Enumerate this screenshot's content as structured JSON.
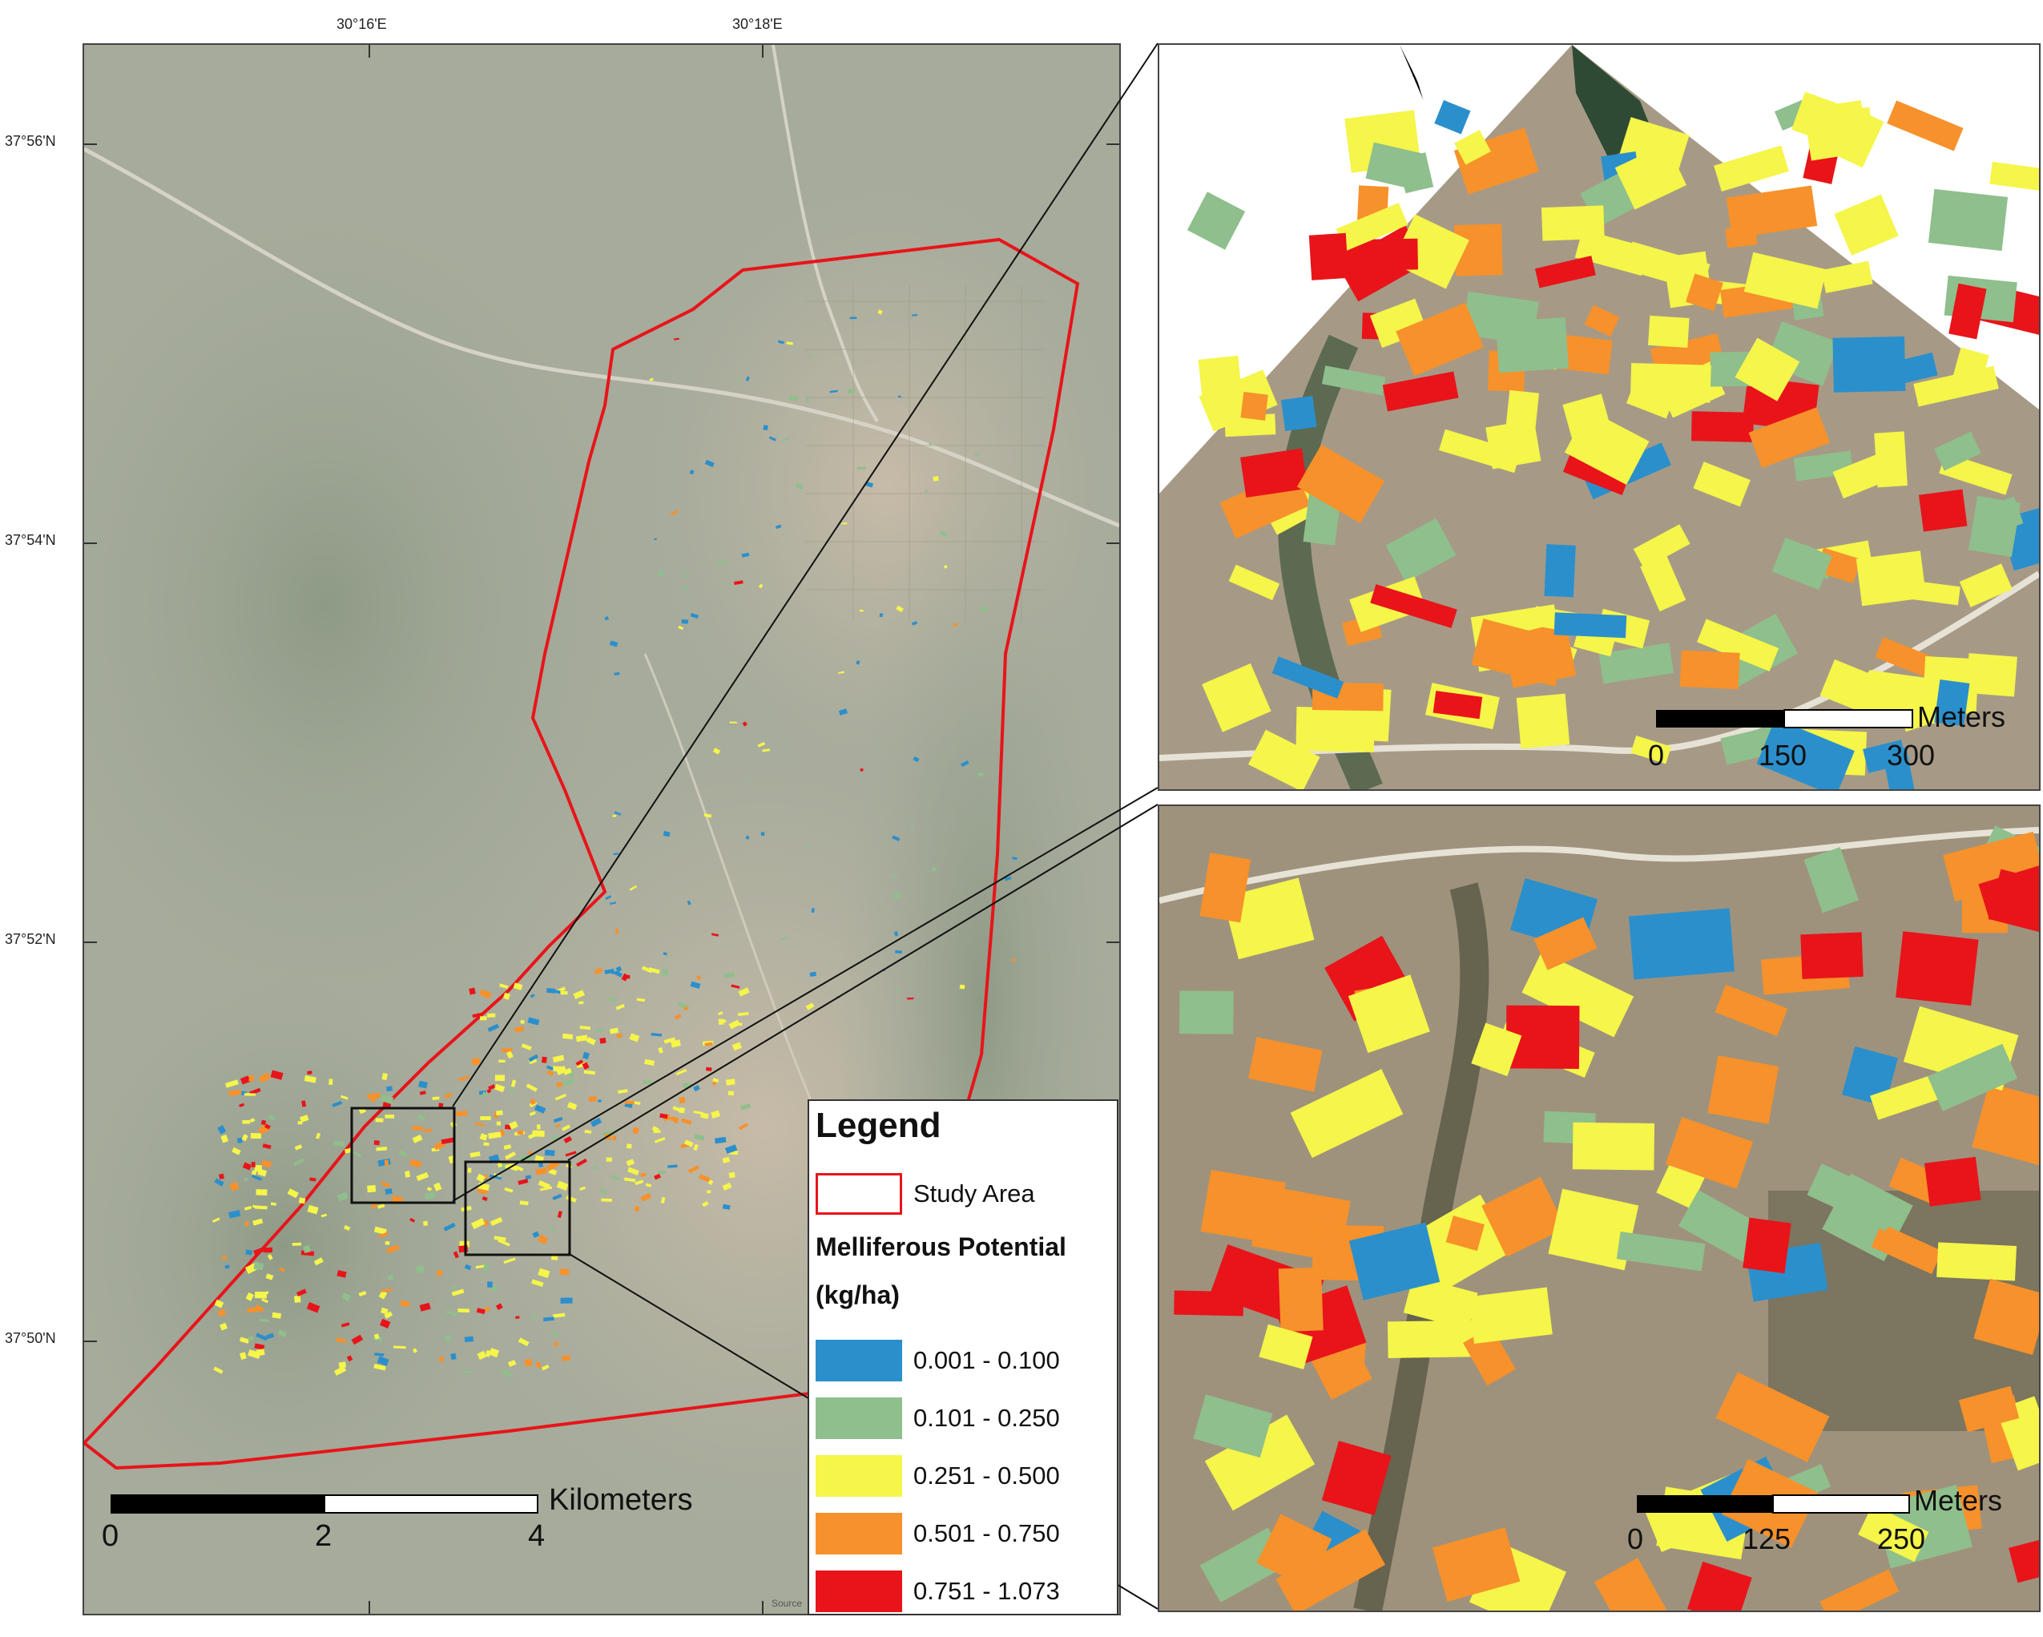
{
  "main_map": {
    "lon_ticks": [
      "30°16'E",
      "30°18'E"
    ],
    "lat_ticks": [
      "37°56'N",
      "37°54'N",
      "37°52'N",
      "37°50'N"
    ],
    "scale_bar": {
      "unit": "Kilometers",
      "labels": [
        "0",
        "2",
        "4"
      ]
    },
    "source_label": "Source"
  },
  "legend": {
    "title": "Legend",
    "study_area": "Study Area",
    "subtitle_line1": "Melliferous Potential",
    "subtitle_line2": "(kg/ha)",
    "classes": [
      {
        "label": "0.001 - 0.100",
        "color": "#2b8fcc"
      },
      {
        "label": "0.101 - 0.250",
        "color": "#8fbf8c"
      },
      {
        "label": "0.251 - 0.500",
        "color": "#f5f54a"
      },
      {
        "label": "0.501 - 0.750",
        "color": "#f7912b"
      },
      {
        "label": "0.751 - 1.073",
        "color": "#e8141a"
      }
    ],
    "study_area_color": "#e8141a"
  },
  "inset_top": {
    "scale_bar": {
      "unit": "Meters",
      "labels": [
        "0",
        "150",
        "300"
      ]
    }
  },
  "inset_bottom": {
    "scale_bar": {
      "unit": "Meters",
      "labels": [
        "0",
        "125",
        "250"
      ]
    }
  }
}
